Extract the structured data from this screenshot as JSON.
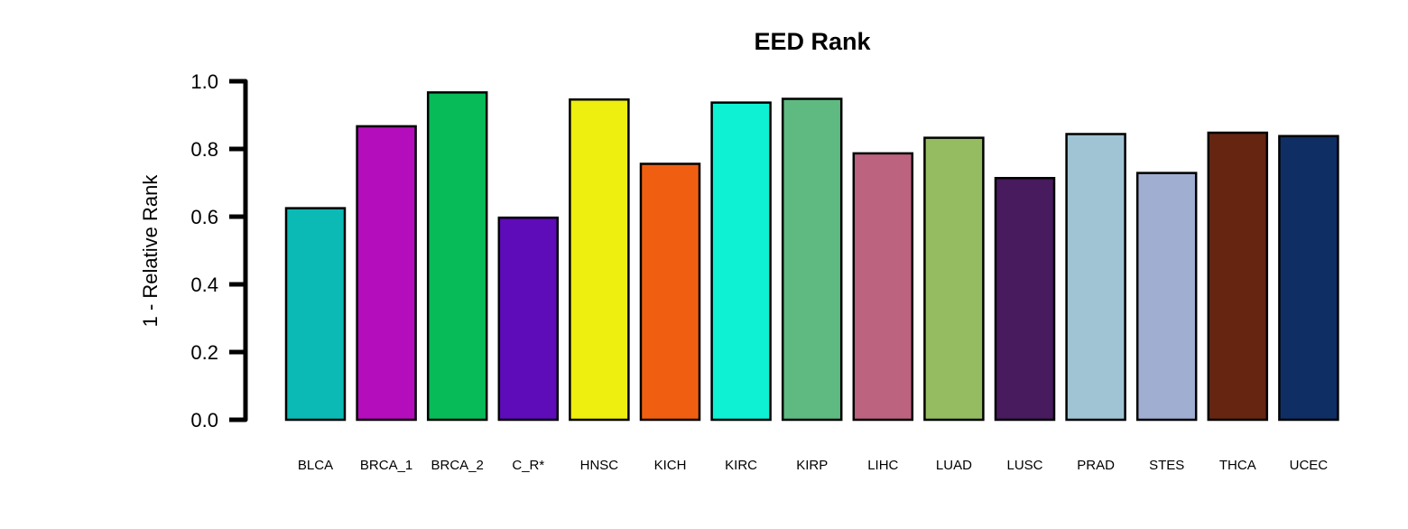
{
  "chart_data": {
    "type": "bar",
    "title": "EED Rank",
    "xlabel": "",
    "ylabel": "1 - Relative Rank",
    "ylim": [
      0,
      1.0
    ],
    "yticks": [
      "0.0",
      "0.2",
      "0.4",
      "0.6",
      "0.8",
      "1.0"
    ],
    "grid": false,
    "categories": [
      "BLCA",
      "BRCA_1",
      "BRCA_2",
      "C_R*",
      "HNSC",
      "KICH",
      "KIRC",
      "KIRP",
      "LIHC",
      "LUAD",
      "LUSC",
      "PRAD",
      "STES",
      "THCA",
      "UCEC"
    ],
    "values": [
      0.625,
      0.867,
      0.967,
      0.597,
      0.946,
      0.756,
      0.937,
      0.948,
      0.787,
      0.833,
      0.714,
      0.844,
      0.729,
      0.848,
      0.838
    ],
    "colors": [
      "#0BBAB4",
      "#B40DBB",
      "#06BB58",
      "#5E0BB9",
      "#EEEE0F",
      "#F05F11",
      "#0EF1D3",
      "#5FBA82",
      "#BC6380",
      "#96BC62",
      "#481A5E",
      "#A0C4D3",
      "#A0AED2",
      "#652511",
      "#0E2E64"
    ]
  }
}
